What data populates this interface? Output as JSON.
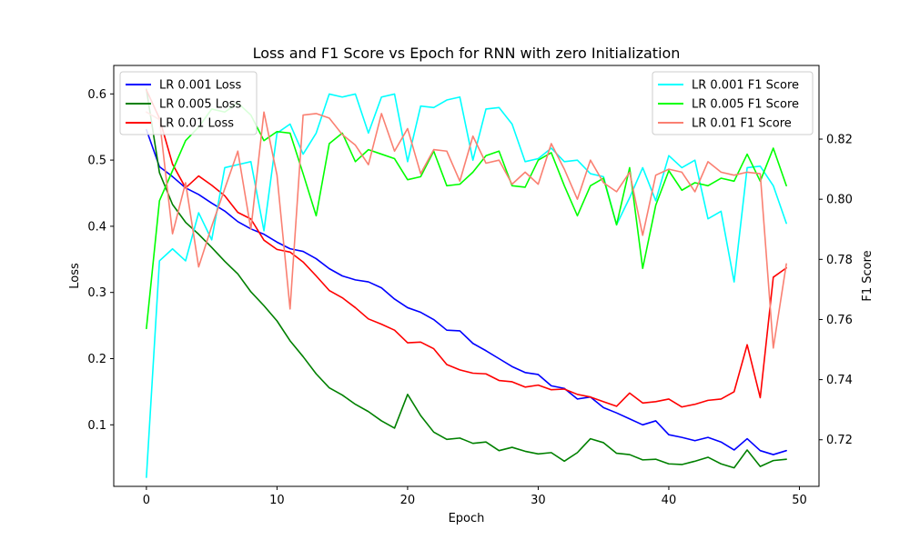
{
  "chart_data": {
    "type": "line",
    "title": "Loss and F1 Score vs Epoch for RNN with zero Initialization",
    "xlabel": "Epoch",
    "ylabel_left": "Loss",
    "ylabel_right": "F1 Score",
    "xlim": [
      -2.5,
      51.5
    ],
    "ylim_left": [
      0.007,
      0.643
    ],
    "ylim_right": [
      0.7045,
      0.8445
    ],
    "x_ticks": [
      0,
      10,
      20,
      30,
      40,
      50
    ],
    "y_ticks_left": [
      0.1,
      0.2,
      0.3,
      0.4,
      0.5,
      0.6
    ],
    "y_ticks_right": [
      0.72,
      0.74,
      0.76,
      0.78,
      0.8,
      0.82
    ],
    "legend_left": "upper left",
    "legend_right": "upper right",
    "x": [
      0,
      1,
      2,
      3,
      4,
      5,
      6,
      7,
      8,
      9,
      10,
      11,
      12,
      13,
      14,
      15,
      16,
      17,
      18,
      19,
      20,
      21,
      22,
      23,
      24,
      25,
      26,
      27,
      28,
      29,
      30,
      31,
      32,
      33,
      34,
      35,
      36,
      37,
      38,
      39,
      40,
      41,
      42,
      43,
      44,
      45,
      46,
      47,
      48,
      49
    ],
    "series_left": [
      {
        "name": "LR 0.001 Loss",
        "color": "#0000ff",
        "values": [
          0.546,
          0.49,
          0.475,
          0.458,
          0.448,
          0.435,
          0.423,
          0.407,
          0.396,
          0.388,
          0.376,
          0.366,
          0.362,
          0.351,
          0.336,
          0.325,
          0.319,
          0.316,
          0.307,
          0.29,
          0.277,
          0.27,
          0.259,
          0.243,
          0.242,
          0.223,
          0.212,
          0.2,
          0.188,
          0.179,
          0.176,
          0.159,
          0.155,
          0.139,
          0.142,
          0.126,
          0.118,
          0.109,
          0.1,
          0.106,
          0.085,
          0.081,
          0.076,
          0.081,
          0.074,
          0.062,
          0.079,
          0.061,
          0.055,
          0.061
        ]
      },
      {
        "name": "LR 0.005 Loss",
        "color": "#008000",
        "values": [
          0.607,
          0.481,
          0.433,
          0.406,
          0.388,
          0.368,
          0.347,
          0.328,
          0.301,
          0.28,
          0.257,
          0.227,
          0.203,
          0.177,
          0.156,
          0.145,
          0.131,
          0.12,
          0.106,
          0.095,
          0.146,
          0.114,
          0.089,
          0.078,
          0.08,
          0.072,
          0.074,
          0.061,
          0.066,
          0.06,
          0.056,
          0.058,
          0.045,
          0.058,
          0.079,
          0.073,
          0.057,
          0.055,
          0.047,
          0.048,
          0.041,
          0.04,
          0.045,
          0.051,
          0.041,
          0.035,
          0.062,
          0.037,
          0.046,
          0.048
        ]
      },
      {
        "name": "LR 0.01 Loss",
        "color": "#ff0000",
        "values": [
          0.606,
          0.563,
          0.494,
          0.458,
          0.476,
          0.462,
          0.446,
          0.421,
          0.411,
          0.379,
          0.365,
          0.361,
          0.346,
          0.325,
          0.303,
          0.292,
          0.277,
          0.26,
          0.252,
          0.243,
          0.224,
          0.225,
          0.215,
          0.191,
          0.183,
          0.178,
          0.177,
          0.167,
          0.165,
          0.157,
          0.16,
          0.153,
          0.154,
          0.146,
          0.142,
          0.135,
          0.128,
          0.148,
          0.133,
          0.135,
          0.139,
          0.127,
          0.131,
          0.137,
          0.139,
          0.15,
          0.221,
          0.141,
          0.323,
          0.337
        ]
      }
    ],
    "series_right": [
      {
        "name": "LR 0.001 F1 Score",
        "color": "#00ffff",
        "values": [
          0.7075,
          0.7795,
          0.7835,
          0.7795,
          0.7955,
          0.7865,
          0.8105,
          0.8115,
          0.8125,
          0.7895,
          0.822,
          0.825,
          0.815,
          0.822,
          0.835,
          0.834,
          0.835,
          0.822,
          0.834,
          0.835,
          0.8125,
          0.831,
          0.8305,
          0.833,
          0.834,
          0.813,
          0.83,
          0.8305,
          0.825,
          0.8125,
          0.8135,
          0.817,
          0.8125,
          0.813,
          0.8085,
          0.8075,
          0.7915,
          0.8005,
          0.8105,
          0.7995,
          0.8145,
          0.8105,
          0.813,
          0.7935,
          0.796,
          0.7725,
          0.8105,
          0.811,
          0.8045,
          0.792
        ]
      },
      {
        "name": "LR 0.005 F1 Score",
        "color": "#00ff00",
        "values": [
          0.757,
          0.7995,
          0.8095,
          0.8195,
          0.824,
          0.83,
          0.829,
          0.832,
          0.828,
          0.8195,
          0.8225,
          0.822,
          0.8085,
          0.7945,
          0.8185,
          0.822,
          0.8125,
          0.8165,
          0.815,
          0.8135,
          0.8065,
          0.8075,
          0.816,
          0.8045,
          0.805,
          0.809,
          0.8145,
          0.816,
          0.8045,
          0.804,
          0.813,
          0.8155,
          0.8045,
          0.7945,
          0.8045,
          0.807,
          0.7915,
          0.8105,
          0.777,
          0.798,
          0.8095,
          0.803,
          0.8055,
          0.8045,
          0.807,
          0.806,
          0.815,
          0.806,
          0.817,
          0.8045
        ]
      },
      {
        "name": "LR 0.01 F1 Score",
        "color": "#fa8072",
        "values": [
          0.829,
          0.8265,
          0.7885,
          0.8055,
          0.7775,
          0.791,
          0.8035,
          0.816,
          0.79,
          0.829,
          0.808,
          0.7635,
          0.828,
          0.8285,
          0.827,
          0.8215,
          0.818,
          0.8115,
          0.8285,
          0.816,
          0.8235,
          0.8085,
          0.8165,
          0.816,
          0.806,
          0.821,
          0.812,
          0.813,
          0.805,
          0.809,
          0.805,
          0.8185,
          0.81,
          0.8,
          0.813,
          0.8055,
          0.8025,
          0.809,
          0.788,
          0.808,
          0.81,
          0.809,
          0.8025,
          0.8125,
          0.809,
          0.808,
          0.809,
          0.8085,
          0.7505,
          0.7785
        ]
      }
    ]
  }
}
